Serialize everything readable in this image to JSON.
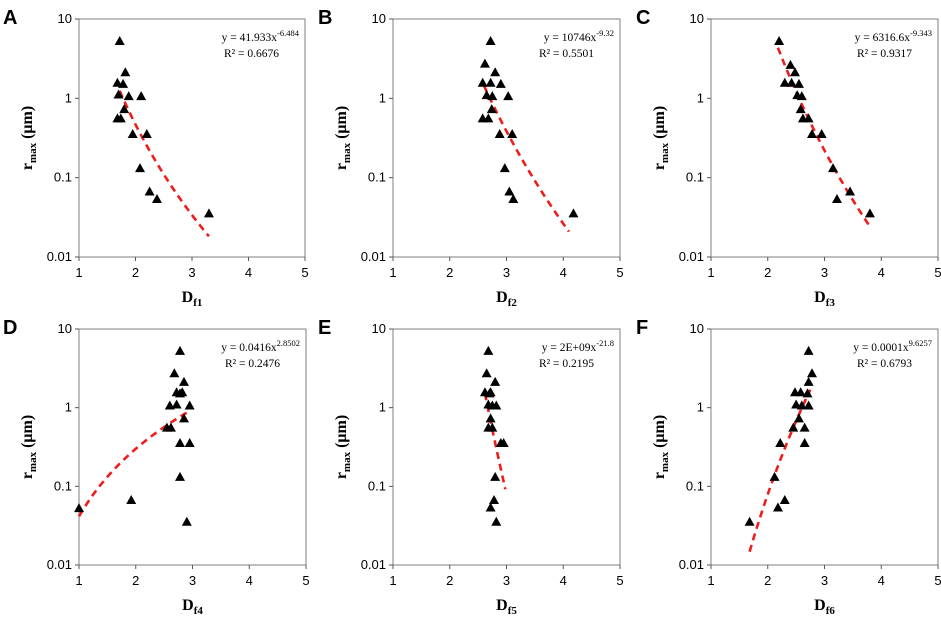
{
  "chart_data": [
    {
      "type": "scatter",
      "panel": "A",
      "xlabel_main": "D",
      "xlabel_sub": "f1",
      "ylabel_main": "r",
      "ylabel_sub": "max",
      "ylabel_unit": " (μm)",
      "xlim": [
        1,
        5
      ],
      "ylim": [
        0.01,
        10
      ],
      "yscale": "log",
      "xticks": [
        "1",
        "2",
        "3",
        "4",
        "5"
      ],
      "yticks": [
        "0.01",
        "0.1",
        "1",
        "10"
      ],
      "points": [
        [
          1.72,
          5.2
        ],
        [
          1.68,
          1.55
        ],
        [
          1.78,
          1.5
        ],
        [
          1.82,
          2.1
        ],
        [
          1.7,
          1.1
        ],
        [
          1.88,
          1.05
        ],
        [
          2.1,
          1.05
        ],
        [
          1.68,
          0.55
        ],
        [
          1.74,
          0.55
        ],
        [
          1.8,
          0.72
        ],
        [
          1.95,
          0.35
        ],
        [
          2.2,
          0.35
        ],
        [
          2.08,
          0.13
        ],
        [
          2.25,
          0.066
        ],
        [
          2.38,
          0.053
        ],
        [
          3.3,
          0.035
        ]
      ],
      "trend": {
        "a": 41.933,
        "b": -6.484,
        "x_range": [
          1.72,
          3.3
        ]
      },
      "equation": {
        "prefix": "y = 41.933x",
        "exponent": "-6.484",
        "r2": "R² = 0.6676"
      }
    },
    {
      "type": "scatter",
      "panel": "B",
      "xlabel_main": "D",
      "xlabel_sub": "f2",
      "ylabel_main": "r",
      "ylabel_sub": "max",
      "ylabel_unit": " (μm)",
      "xlim": [
        1,
        5
      ],
      "ylim": [
        0.01,
        10
      ],
      "yscale": "log",
      "xticks": [
        "1",
        "2",
        "3",
        "4",
        "5"
      ],
      "yticks": [
        "0.01",
        "0.1",
        "1",
        "10"
      ],
      "points": [
        [
          2.72,
          5.2
        ],
        [
          2.62,
          2.7
        ],
        [
          2.8,
          2.1
        ],
        [
          2.58,
          1.55
        ],
        [
          2.72,
          1.55
        ],
        [
          2.9,
          1.5
        ],
        [
          2.65,
          1.08
        ],
        [
          2.75,
          1.05
        ],
        [
          3.03,
          1.05
        ],
        [
          2.58,
          0.55
        ],
        [
          2.68,
          0.55
        ],
        [
          2.74,
          0.72
        ],
        [
          2.88,
          0.35
        ],
        [
          3.1,
          0.35
        ],
        [
          2.97,
          0.13
        ],
        [
          3.05,
          0.066
        ],
        [
          3.12,
          0.053
        ],
        [
          4.18,
          0.035
        ]
      ],
      "trend": {
        "a": 10746,
        "b": -9.32,
        "x_range": [
          2.6,
          4.1
        ]
      },
      "equation": {
        "prefix": "y = 10746x",
        "exponent": "-9.32",
        "r2": "R² = 0.5501"
      }
    },
    {
      "type": "scatter",
      "panel": "C",
      "xlabel_main": "D",
      "xlabel_sub": "f3",
      "ylabel_main": "r",
      "ylabel_sub": "max",
      "ylabel_unit": " (μm)",
      "xlim": [
        1,
        5
      ],
      "ylim": [
        0.01,
        10
      ],
      "yscale": "log",
      "xticks": [
        "1",
        "2",
        "3",
        "4",
        "5"
      ],
      "yticks": [
        "0.01",
        "0.1",
        "1",
        "10"
      ],
      "points": [
        [
          2.2,
          5.2
        ],
        [
          2.4,
          2.6
        ],
        [
          2.48,
          2.1
        ],
        [
          2.3,
          1.55
        ],
        [
          2.42,
          1.55
        ],
        [
          2.55,
          1.5
        ],
        [
          2.52,
          1.08
        ],
        [
          2.6,
          1.05
        ],
        [
          2.58,
          0.72
        ],
        [
          2.62,
          0.55
        ],
        [
          2.72,
          0.55
        ],
        [
          2.78,
          0.35
        ],
        [
          2.95,
          0.35
        ],
        [
          3.15,
          0.13
        ],
        [
          3.22,
          0.053
        ],
        [
          3.45,
          0.066
        ],
        [
          3.8,
          0.035
        ]
      ],
      "trend": {
        "a": 6316.6,
        "b": -9.343,
        "x_range": [
          2.18,
          3.78
        ]
      },
      "equation": {
        "prefix": "y = 6316.6x",
        "exponent": "-9.343",
        "r2": "R² = 0.9317"
      }
    },
    {
      "type": "scatter",
      "panel": "D",
      "xlabel_main": "D",
      "xlabel_sub": "f4",
      "ylabel_main": "r",
      "ylabel_sub": "max",
      "ylabel_unit": " (μm)",
      "xlim": [
        1,
        5
      ],
      "ylim": [
        0.01,
        10
      ],
      "yscale": "log",
      "xticks": [
        "1",
        "2",
        "3",
        "4",
        "5"
      ],
      "yticks": [
        "0.01",
        "0.1",
        "1",
        "10"
      ],
      "points": [
        [
          1.0,
          0.052
        ],
        [
          1.92,
          0.066
        ],
        [
          2.78,
          5.2
        ],
        [
          2.68,
          2.7
        ],
        [
          2.85,
          2.1
        ],
        [
          2.72,
          1.55
        ],
        [
          2.82,
          1.55
        ],
        [
          2.78,
          1.5
        ],
        [
          2.6,
          1.05
        ],
        [
          2.72,
          1.08
        ],
        [
          2.95,
          1.05
        ],
        [
          2.85,
          0.72
        ],
        [
          2.55,
          0.55
        ],
        [
          2.62,
          0.55
        ],
        [
          2.78,
          0.35
        ],
        [
          2.95,
          0.35
        ],
        [
          2.78,
          0.13
        ],
        [
          2.9,
          0.035
        ]
      ],
      "trend": {
        "a": 0.0416,
        "b": 2.8502,
        "x_range": [
          1.0,
          2.95
        ]
      },
      "equation": {
        "prefix": "y = 0.0416x",
        "exponent": "2.8502",
        "r2": "R² = 0.2476"
      }
    },
    {
      "type": "scatter",
      "panel": "E",
      "xlabel_main": "D",
      "xlabel_sub": "f5",
      "ylabel_main": "r",
      "ylabel_sub": "max",
      "ylabel_unit": " (μm)",
      "xlim": [
        1,
        5
      ],
      "ylim": [
        0.01,
        10
      ],
      "yscale": "log",
      "xticks": [
        "1",
        "2",
        "3",
        "4",
        "5"
      ],
      "yticks": [
        "0.01",
        "0.1",
        "1",
        "10"
      ],
      "points": [
        [
          2.68,
          5.2
        ],
        [
          2.65,
          2.7
        ],
        [
          2.8,
          2.1
        ],
        [
          2.62,
          1.55
        ],
        [
          2.72,
          1.55
        ],
        [
          2.7,
          1.5
        ],
        [
          2.68,
          1.08
        ],
        [
          2.75,
          1.05
        ],
        [
          2.82,
          1.05
        ],
        [
          2.72,
          0.72
        ],
        [
          2.68,
          0.55
        ],
        [
          2.75,
          0.55
        ],
        [
          2.9,
          0.35
        ],
        [
          2.95,
          0.35
        ],
        [
          2.8,
          0.13
        ],
        [
          2.78,
          0.066
        ],
        [
          2.72,
          0.053
        ],
        [
          2.82,
          0.035
        ]
      ],
      "trend": {
        "a": 2000000000,
        "b": -21.8,
        "x_range": [
          2.62,
          2.98
        ]
      },
      "equation": {
        "prefix": "y = 2E+09x",
        "exponent": "-21.8",
        "r2": "R² = 0.2195"
      }
    },
    {
      "type": "scatter",
      "panel": "F",
      "xlabel_main": "D",
      "xlabel_sub": "f6",
      "ylabel_main": "r",
      "ylabel_sub": "max",
      "ylabel_unit": " (μm)",
      "xlim": [
        1,
        5
      ],
      "ylim": [
        0.01,
        10
      ],
      "yscale": "log",
      "xticks": [
        "1",
        "2",
        "3",
        "4",
        "5"
      ],
      "yticks": [
        "0.01",
        "0.1",
        "1",
        "10"
      ],
      "points": [
        [
          2.72,
          5.2
        ],
        [
          2.78,
          2.7
        ],
        [
          2.72,
          2.1
        ],
        [
          2.48,
          1.55
        ],
        [
          2.58,
          1.55
        ],
        [
          2.7,
          1.5
        ],
        [
          2.5,
          1.08
        ],
        [
          2.6,
          1.05
        ],
        [
          2.72,
          1.05
        ],
        [
          2.55,
          0.72
        ],
        [
          2.45,
          0.55
        ],
        [
          2.65,
          0.55
        ],
        [
          2.22,
          0.35
        ],
        [
          2.65,
          0.35
        ],
        [
          2.12,
          0.13
        ],
        [
          2.3,
          0.066
        ],
        [
          2.18,
          0.053
        ],
        [
          1.68,
          0.035
        ]
      ],
      "trend": {
        "a": 0.0001,
        "b": 9.6257,
        "x_range": [
          1.68,
          2.75
        ]
      },
      "equation": {
        "prefix": "y = 0.0001x",
        "exponent": "9.6257",
        "r2": "R² = 0.6793"
      }
    }
  ]
}
